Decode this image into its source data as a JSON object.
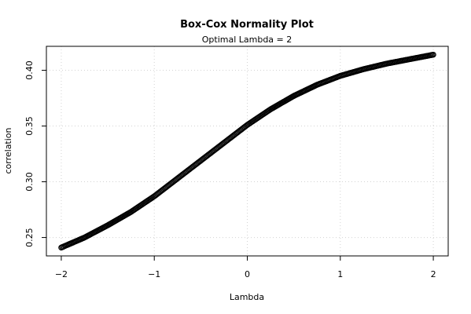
{
  "chart_data": {
    "type": "scatter",
    "title": "Box-Cox Normality Plot",
    "subtitle": "Optimal Lambda = 2",
    "xlabel": "Lambda",
    "ylabel": "correlation",
    "xlim": [
      -2.16,
      2.16
    ],
    "ylim": [
      0.2335,
      0.4215
    ],
    "x_ticks": [
      -2,
      -1,
      0,
      1,
      2
    ],
    "y_ticks": [
      0.25,
      0.3,
      0.35,
      0.4
    ],
    "x_tick_labels": [
      "−2",
      "−1",
      "0",
      "1",
      "2"
    ],
    "y_tick_labels": [
      "0.25",
      "0.30",
      "0.35",
      "0.40"
    ],
    "grid": true,
    "series": [
      {
        "color": "#000000",
        "marker": "open-circle",
        "x": [
          -2.0,
          -1.75,
          -1.5,
          -1.25,
          -1.0,
          -0.75,
          -0.5,
          -0.25,
          0.0,
          0.25,
          0.5,
          0.75,
          1.0,
          1.25,
          1.5,
          1.75,
          2.0
        ],
        "y": [
          0.241,
          0.25,
          0.261,
          0.273,
          0.287,
          0.303,
          0.319,
          0.335,
          0.351,
          0.365,
          0.377,
          0.387,
          0.395,
          0.401,
          0.406,
          0.41,
          0.414
        ]
      }
    ]
  }
}
